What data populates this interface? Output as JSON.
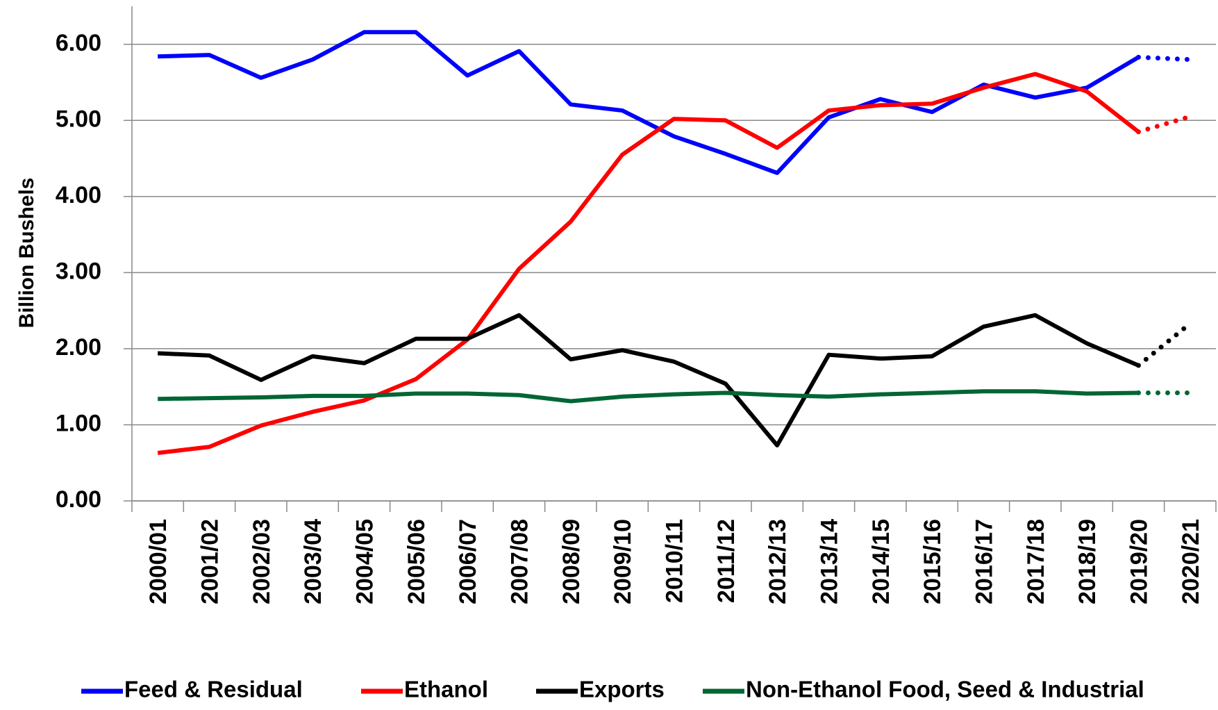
{
  "chart_data": {
    "type": "line",
    "y_label": "Billion Bushels",
    "categories": [
      "2000/01",
      "2001/02",
      "2002/03",
      "2003/04",
      "2004/05",
      "2005/06",
      "2006/07",
      "2007/08",
      "2008/09",
      "2009/10",
      "2010/11",
      "2011/12",
      "2012/13",
      "2013/14",
      "2014/15",
      "2015/16",
      "2016/17",
      "2017/18",
      "2018/19",
      "2019/20",
      "2020/21"
    ],
    "series": [
      {
        "name": "Feed & Residual",
        "color": "#0000ff",
        "values": [
          5.84,
          5.86,
          5.56,
          5.8,
          6.16,
          6.16,
          5.59,
          5.91,
          5.21,
          5.13,
          4.79,
          4.56,
          4.31,
          5.04,
          5.28,
          5.11,
          5.47,
          5.3,
          5.43,
          5.83,
          5.8
        ]
      },
      {
        "name": "Ethanol",
        "color": "#ff0000",
        "values": [
          0.63,
          0.71,
          0.99,
          1.17,
          1.32,
          1.6,
          2.12,
          3.05,
          3.67,
          4.55,
          5.02,
          5.0,
          4.64,
          5.13,
          5.2,
          5.22,
          5.43,
          5.61,
          5.38,
          4.85,
          5.05
        ]
      },
      {
        "name": "Exports",
        "color": "#000000",
        "values": [
          1.94,
          1.91,
          1.59,
          1.9,
          1.81,
          2.13,
          2.13,
          2.44,
          1.86,
          1.98,
          1.83,
          1.54,
          0.73,
          1.92,
          1.87,
          1.9,
          2.29,
          2.44,
          2.07,
          1.78,
          2.33
        ]
      },
      {
        "name": "Non-Ethanol Food, Seed & Industrial",
        "color": "#006633",
        "values": [
          1.34,
          1.35,
          1.36,
          1.38,
          1.38,
          1.41,
          1.41,
          1.39,
          1.31,
          1.37,
          1.4,
          1.42,
          1.39,
          1.37,
          1.4,
          1.42,
          1.44,
          1.44,
          1.41,
          1.42,
          1.42
        ]
      }
    ],
    "last_segment_style": "dotted",
    "ylim": [
      0,
      6.5
    ],
    "yticks": [
      {
        "value": 0,
        "label": "0.00"
      },
      {
        "value": 1,
        "label": "1.00"
      },
      {
        "value": 2,
        "label": "2.00"
      },
      {
        "value": 3,
        "label": "3.00"
      },
      {
        "value": 4,
        "label": "4.00"
      },
      {
        "value": 5,
        "label": "5.00"
      },
      {
        "value": 6,
        "label": "6.00"
      }
    ],
    "grid": true,
    "legend": "bottom"
  }
}
